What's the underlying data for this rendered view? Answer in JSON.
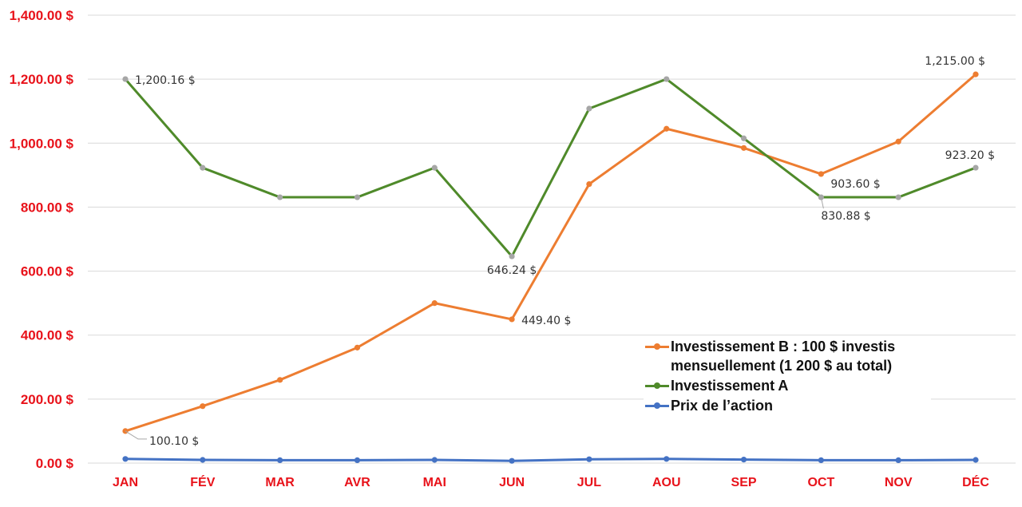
{
  "chart_data": {
    "type": "line",
    "categories": [
      "JAN",
      "FÉV",
      "MAR",
      "AVR",
      "MAI",
      "JUN",
      "JUL",
      "AOU",
      "SEP",
      "OCT",
      "NOV",
      "DÉC"
    ],
    "ylim": [
      0,
      1400
    ],
    "yticks": [
      {
        "value": 0,
        "label": "0.00 $"
      },
      {
        "value": 200,
        "label": "200.00 $"
      },
      {
        "value": 400,
        "label": "400.00 $"
      },
      {
        "value": 600,
        "label": "600.00 $"
      },
      {
        "value": 800,
        "label": "800.00 $"
      },
      {
        "value": 1000,
        "label": "1,000.00 $"
      },
      {
        "value": 1200,
        "label": "1,200.00 $"
      },
      {
        "value": 1400,
        "label": "1,400.00 $"
      }
    ],
    "grid": true,
    "tick_color": "#e8121a",
    "grid_color": "#d9d9d9",
    "legend_position": "bottom-right",
    "series": [
      {
        "name": "Investissement B : 100 $ investis mensuellement (1 200 $ au total)",
        "legend_lines": [
          "Investissement B : 100 $ investis",
          "mensuellement (1 200 $ au total)"
        ],
        "color": "#ed7d31",
        "values": [
          100.1,
          178,
          260,
          361,
          500,
          449.4,
          872,
          1045,
          985,
          903.6,
          1005,
          1215.0
        ],
        "labels": [
          {
            "index": 0,
            "text": "100.10 $"
          },
          {
            "index": 5,
            "text": "449.40 $"
          },
          {
            "index": 9,
            "text": "903.60 $"
          },
          {
            "index": 11,
            "text": "1,215.00 $"
          }
        ]
      },
      {
        "name": "Investissement A",
        "legend_lines": [
          "Investissement A"
        ],
        "color": "#4f8a2a",
        "marker_color": "#a6a6a6",
        "values": [
          1200.16,
          923,
          830.88,
          830.88,
          923,
          646.24,
          1108,
          1200.16,
          1015,
          830.88,
          830.88,
          923.2
        ],
        "labels": [
          {
            "index": 0,
            "text": "1,200.16 $"
          },
          {
            "index": 5,
            "text": "646.24 $"
          },
          {
            "index": 9,
            "text": "830.88 $"
          },
          {
            "index": 11,
            "text": "923.20 $"
          }
        ]
      },
      {
        "name": "Prix de l’action",
        "legend_lines": [
          "Prix de l’action"
        ],
        "color": "#4472c4",
        "values": [
          13,
          10,
          9,
          9,
          10,
          7,
          12,
          13,
          11,
          9,
          9,
          10
        ],
        "labels": []
      }
    ]
  }
}
